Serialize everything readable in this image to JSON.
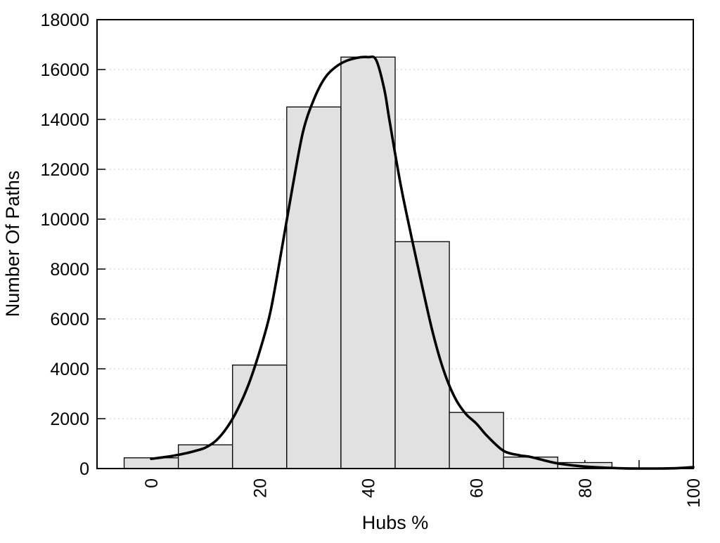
{
  "figure": {
    "xlabel": "Hubs %",
    "ylabel": "Number Of Paths"
  },
  "chart_data": {
    "type": "bar",
    "subtype": "histogram-with-density-curve",
    "title": "",
    "xlabel": "Hubs %",
    "ylabel": "Number Of Paths",
    "xlim": [
      -10,
      100
    ],
    "ylim": [
      0,
      18000
    ],
    "x_major_ticks": [
      0,
      20,
      40,
      60,
      80,
      100
    ],
    "x_minor_tick_step": 10,
    "y_ticks": [
      0,
      2000,
      4000,
      6000,
      8000,
      10000,
      12000,
      14000,
      16000,
      18000
    ],
    "grid": {
      "horizontal": true,
      "vertical": false,
      "style": "dotted"
    },
    "legend": "none",
    "colors": {
      "bar_fill": "#e1e1e1",
      "bar_stroke": "#000000",
      "curve": "#000000",
      "gridline": "#bcbcbc",
      "axis": "#000000"
    },
    "bars": {
      "bin_width": 10,
      "bin_centers": [
        0,
        10,
        20,
        30,
        40,
        50,
        60,
        70,
        80
      ],
      "values": [
        430,
        950,
        4150,
        14500,
        16500,
        9100,
        2250,
        460,
        240
      ]
    },
    "curve": {
      "name": "fitted-distribution",
      "points": [
        [
          0,
          390
        ],
        [
          2,
          445
        ],
        [
          4,
          510
        ],
        [
          6,
          595
        ],
        [
          8,
          700
        ],
        [
          10,
          840
        ],
        [
          12,
          1130
        ],
        [
          14,
          1650
        ],
        [
          16,
          2400
        ],
        [
          18,
          3400
        ],
        [
          20,
          4700
        ],
        [
          22,
          6300
        ],
        [
          24,
          8700
        ],
        [
          26,
          11200
        ],
        [
          28,
          13500
        ],
        [
          30,
          14800
        ],
        [
          32,
          15650
        ],
        [
          34,
          16100
        ],
        [
          36,
          16350
        ],
        [
          38,
          16470
        ],
        [
          40,
          16500
        ],
        [
          41.5,
          16380
        ],
        [
          43,
          15200
        ],
        [
          44,
          13900
        ],
        [
          46,
          11400
        ],
        [
          48,
          9300
        ],
        [
          50,
          7300
        ],
        [
          52,
          5400
        ],
        [
          54,
          3900
        ],
        [
          56,
          2850
        ],
        [
          58,
          2200
        ],
        [
          60,
          1800
        ],
        [
          62,
          1300
        ],
        [
          65,
          710
        ],
        [
          68,
          530
        ],
        [
          70,
          465
        ],
        [
          73,
          300
        ],
        [
          75,
          205
        ],
        [
          78,
          120
        ],
        [
          80,
          80
        ],
        [
          83,
          40
        ],
        [
          86,
          14
        ],
        [
          88,
          4
        ],
        [
          90,
          0
        ],
        [
          93,
          0
        ],
        [
          96,
          8
        ],
        [
          98,
          28
        ],
        [
          100,
          55
        ]
      ]
    }
  }
}
